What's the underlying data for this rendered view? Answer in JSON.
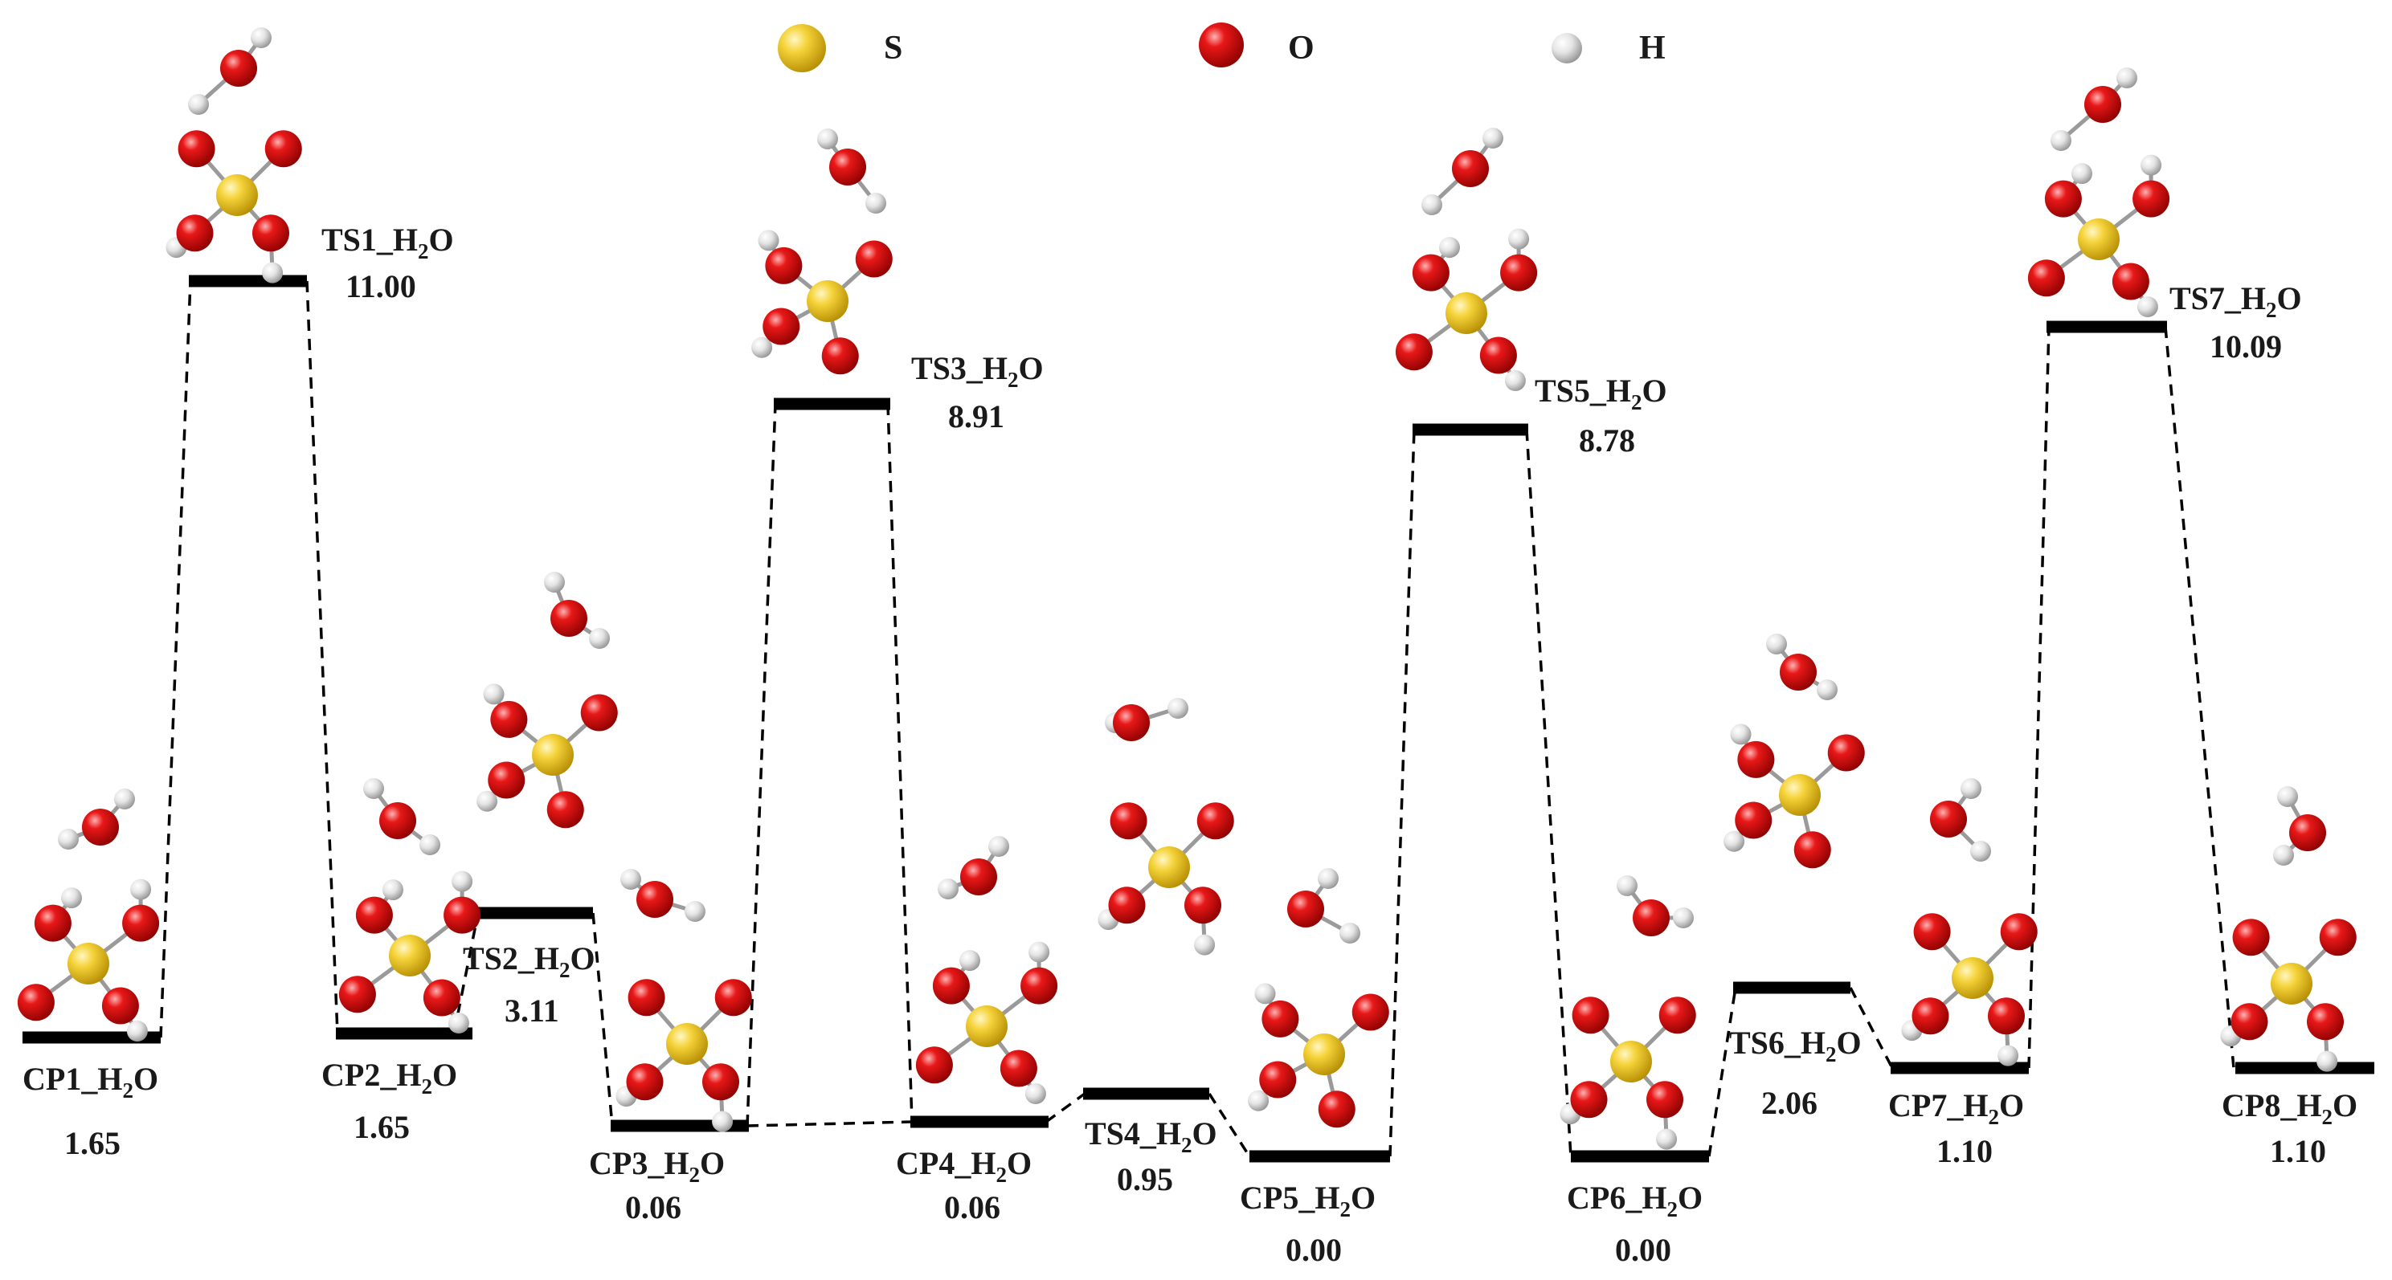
{
  "legend": [
    {
      "symbol": "S",
      "color": "#e8c21c",
      "icon": "sulfur-atom-icon"
    },
    {
      "symbol": "O",
      "color": "#d60f0f",
      "icon": "oxygen-atom-icon"
    },
    {
      "symbol": "H",
      "color": "#e2e2e2",
      "icon": "hydrogen-atom-icon"
    }
  ],
  "states": [
    {
      "id": "cp1",
      "label": "CP1_H",
      "sub": "2",
      "suffix": "O",
      "energy": "1.65"
    },
    {
      "id": "ts1",
      "label": "TS1_H",
      "sub": "2",
      "suffix": "O",
      "energy": "11.00"
    },
    {
      "id": "cp2",
      "label": "CP2_H",
      "sub": "2",
      "suffix": "O",
      "energy": "1.65"
    },
    {
      "id": "ts2",
      "label": "TS2_H",
      "sub": "2",
      "suffix": "O",
      "energy": "3.11"
    },
    {
      "id": "cp3",
      "label": "CP3_H",
      "sub": "2",
      "suffix": "O",
      "energy": "0.06"
    },
    {
      "id": "ts3",
      "label": "TS3_H",
      "sub": "2",
      "suffix": "O",
      "energy": "8.91"
    },
    {
      "id": "cp4",
      "label": "CP4_H",
      "sub": "2",
      "suffix": "O",
      "energy": "0.06"
    },
    {
      "id": "ts4",
      "label": "TS4_H",
      "sub": "2",
      "suffix": "O",
      "energy": "0.95"
    },
    {
      "id": "cp5",
      "label": "CP5_H",
      "sub": "2",
      "suffix": "O",
      "energy": "0.00"
    },
    {
      "id": "ts5",
      "label": "TS5_H",
      "sub": "2",
      "suffix": "O",
      "energy": "8.78"
    },
    {
      "id": "cp6",
      "label": "CP6_H",
      "sub": "2",
      "suffix": "O",
      "energy": "0.00"
    },
    {
      "id": "ts6",
      "label": "TS6_H",
      "sub": "2",
      "suffix": "O",
      "energy": "2.06"
    },
    {
      "id": "cp7",
      "label": "CP7_H",
      "sub": "2",
      "suffix": "O",
      "energy": "1.10"
    },
    {
      "id": "ts7",
      "label": "TS7_H",
      "sub": "2",
      "suffix": "O",
      "energy": "10.09"
    },
    {
      "id": "cp8",
      "label": "CP8_H",
      "sub": "2",
      "suffix": "O",
      "energy": "1.10"
    }
  ]
}
